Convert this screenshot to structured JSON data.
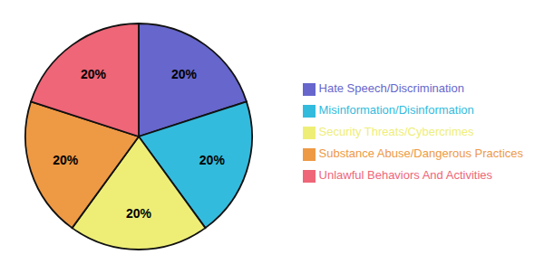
{
  "chart_data": {
    "type": "pie",
    "categories": [
      "Hate Speech/Discrimination",
      "Misinformation/Disinformation",
      "Security Threats/Cybercrimes",
      "Substance Abuse/Dangerous Practices",
      "Unlawful Behaviors And Activities"
    ],
    "values": [
      20,
      20,
      20,
      20,
      20
    ],
    "value_labels": [
      "20%",
      "20%",
      "20%",
      "20%",
      "20%"
    ],
    "colors": [
      "#6666cc",
      "#33bbdd",
      "#eeee77",
      "#ee9944",
      "#ee6677"
    ],
    "data_labels": true,
    "legend": "right"
  }
}
